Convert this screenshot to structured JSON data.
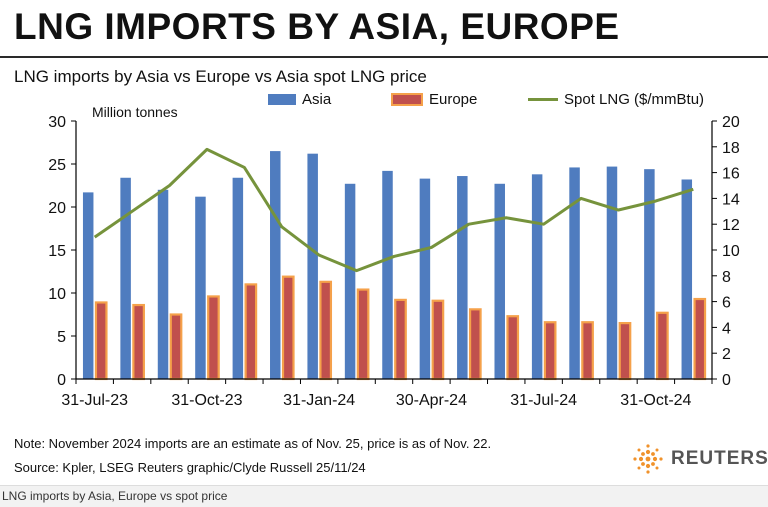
{
  "headline": "LNG IMPORTS BY ASIA, EUROPE",
  "chart_data": {
    "type": "bar",
    "title": "LNG imports by Asia vs Europe vs Asia spot LNG price",
    "ylabel": "Million tonnes",
    "ylim": [
      0,
      30
    ],
    "y2lim": [
      0,
      20
    ],
    "yticks": [
      "0",
      "5",
      "10",
      "15",
      "20",
      "25",
      "30"
    ],
    "y2ticks": [
      "0",
      "2",
      "4",
      "6",
      "8",
      "10",
      "12",
      "14",
      "16",
      "18",
      "20"
    ],
    "x_tick_labels": [
      "31-Jul-23",
      "31-Oct-23",
      "31-Jan-24",
      "30-Apr-24",
      "31-Jul-24",
      "31-Oct-24"
    ],
    "x_tick_label_indices": [
      0,
      3,
      6,
      9,
      12,
      15
    ],
    "categories": [
      "Jul-23",
      "Aug-23",
      "Sep-23",
      "Oct-23",
      "Nov-23",
      "Dec-23",
      "Jan-24",
      "Feb-24",
      "Mar-24",
      "Apr-24",
      "May-24",
      "Jun-24",
      "Jul-24",
      "Aug-24",
      "Sep-24",
      "Oct-24",
      "Nov-24"
    ],
    "legend_placement": "top",
    "series": [
      {
        "name": "Asia",
        "kind": "bar",
        "axis": "left",
        "color": "#4f7cbf",
        "values": [
          21.7,
          23.4,
          22.0,
          21.2,
          23.4,
          26.5,
          26.2,
          22.7,
          24.2,
          23.3,
          23.6,
          22.7,
          23.8,
          24.6,
          24.7,
          24.4,
          23.2
        ]
      },
      {
        "name": "Europe",
        "kind": "bar",
        "axis": "left",
        "color": "#c0504d",
        "border": "#f5a14a",
        "values": [
          8.9,
          8.6,
          7.5,
          9.6,
          11.0,
          11.9,
          11.3,
          10.4,
          9.2,
          9.1,
          8.1,
          7.3,
          6.6,
          6.6,
          6.5,
          7.7,
          9.3
        ]
      },
      {
        "name": "Spot LNG ($/mmBtu)",
        "kind": "line",
        "axis": "right",
        "color": "#76933c",
        "values": [
          11.0,
          13.0,
          15.0,
          17.8,
          16.4,
          11.8,
          9.6,
          8.4,
          9.5,
          10.2,
          12.0,
          12.5,
          12.0,
          14.0,
          13.1,
          13.8,
          14.7
        ]
      }
    ]
  },
  "note": "Note: November 2024 imports are an estimate as of Nov. 25, price is as of Nov. 22.",
  "source": "Source: Kpler, LSEG    Reuters graphic/Clyde Russell 25/11/24",
  "brand": "REUTERS",
  "caption": "LNG imports by Asia, Europe vs spot price"
}
